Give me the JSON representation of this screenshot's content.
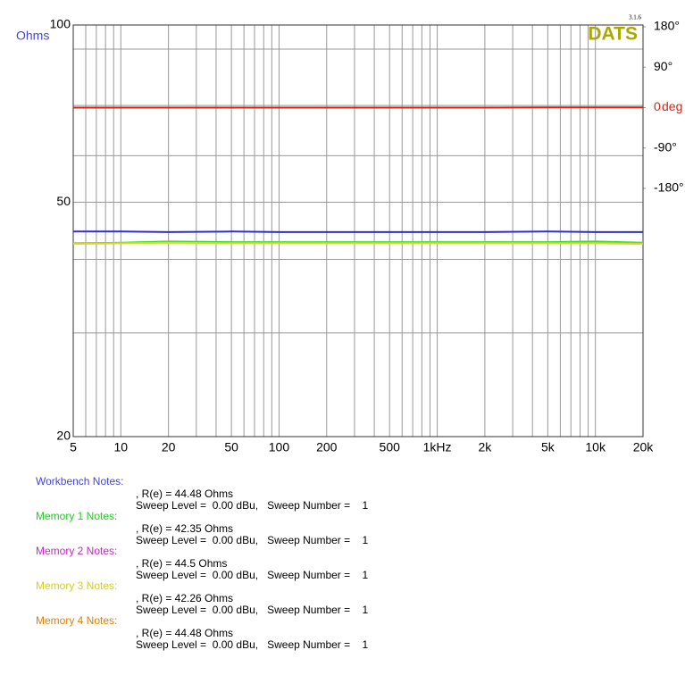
{
  "chart_data": {
    "type": "line",
    "y_label": "Ohms",
    "y2_label": "deg",
    "brand": "DATS",
    "version": "3.1.6",
    "x": [
      5,
      10,
      20,
      50,
      100,
      200,
      500,
      1000,
      2000,
      5000,
      10000,
      20000
    ],
    "xlim": [
      5,
      20000
    ],
    "xticks": [
      5,
      10,
      20,
      50,
      100,
      200,
      500,
      {
        "value": 1000,
        "label": "1kHz"
      },
      {
        "value": 2000,
        "label": "2k"
      },
      {
        "value": 5000,
        "label": "5k"
      },
      {
        "value": 10000,
        "label": "10k"
      },
      {
        "value": 20000,
        "label": "20k"
      }
    ],
    "x_minor_ticks": [
      6,
      7,
      8,
      9,
      30,
      40,
      60,
      70,
      80,
      90,
      300,
      400,
      600,
      700,
      800,
      900,
      3000,
      4000,
      6000,
      7000,
      8000,
      9000
    ],
    "xlog": true,
    "ylim": [
      20,
      100
    ],
    "yticks": [
      20,
      50,
      100
    ],
    "y_minor_ticks": [
      30,
      40,
      60,
      73,
      91
    ],
    "ylog": true,
    "y2lim": [
      -733,
      184
    ],
    "y2ticks": [
      {
        "value": 180,
        "label": "180°"
      },
      {
        "value": 90,
        "label": "90°"
      },
      0,
      {
        "value": -90,
        "label": "-90°"
      },
      {
        "value": -180,
        "label": "-180°"
      }
    ],
    "grid": true,
    "series": [
      {
        "name": "Phase",
        "color": "#e02010",
        "axis": "y2",
        "values": [
          0,
          0,
          0,
          0,
          0,
          0,
          0,
          0,
          0,
          0.5,
          0.5,
          0.5
        ]
      },
      {
        "name": "Memory 1",
        "color": "#40e040",
        "values": [
          42.6,
          42.7,
          42.9,
          42.8,
          42.8,
          42.8,
          42.8,
          42.8,
          42.8,
          42.8,
          42.9,
          42.7
        ]
      },
      {
        "name": "Memory 3",
        "color": "#d8d820",
        "values": [
          42.5,
          42.6,
          42.7,
          42.6,
          42.6,
          42.6,
          42.6,
          42.6,
          42.6,
          42.6,
          42.6,
          42.5
        ]
      },
      {
        "name": "Workbench",
        "color": "#3030d0",
        "values": [
          44.6,
          44.6,
          44.5,
          44.6,
          44.5,
          44.5,
          44.5,
          44.5,
          44.5,
          44.6,
          44.5,
          44.5
        ]
      }
    ],
    "notes": [
      {
        "label": "Workbench Notes:",
        "color": "#4444dd",
        "re": ", R(e) = 44.48 Ohms",
        "sweep": "Sweep Level =  0.00 dBu,   Sweep Number =    1"
      },
      {
        "label": "Memory 1 Notes:",
        "color": "#22cc22",
        "re": ", R(e) = 42.35 Ohms",
        "sweep": "Sweep Level =  0.00 dBu,   Sweep Number =    1"
      },
      {
        "label": "Memory 2 Notes:",
        "color": "#cc22cc",
        "re": ", R(e) = 44.5 Ohms",
        "sweep": "Sweep Level =  0.00 dBu,   Sweep Number =    1"
      },
      {
        "label": "Memory 3 Notes:",
        "color": "#d0d020",
        "re": ", R(e) = 42.26 Ohms",
        "sweep": "Sweep Level =  0.00 dBu,   Sweep Number =    1"
      },
      {
        "label": "Memory 4 Notes:",
        "color": "#e08000",
        "re": ", R(e) = 44.48 Ohms",
        "sweep": "Sweep Level =  0.00 dBu,   Sweep Number =    1"
      }
    ]
  }
}
